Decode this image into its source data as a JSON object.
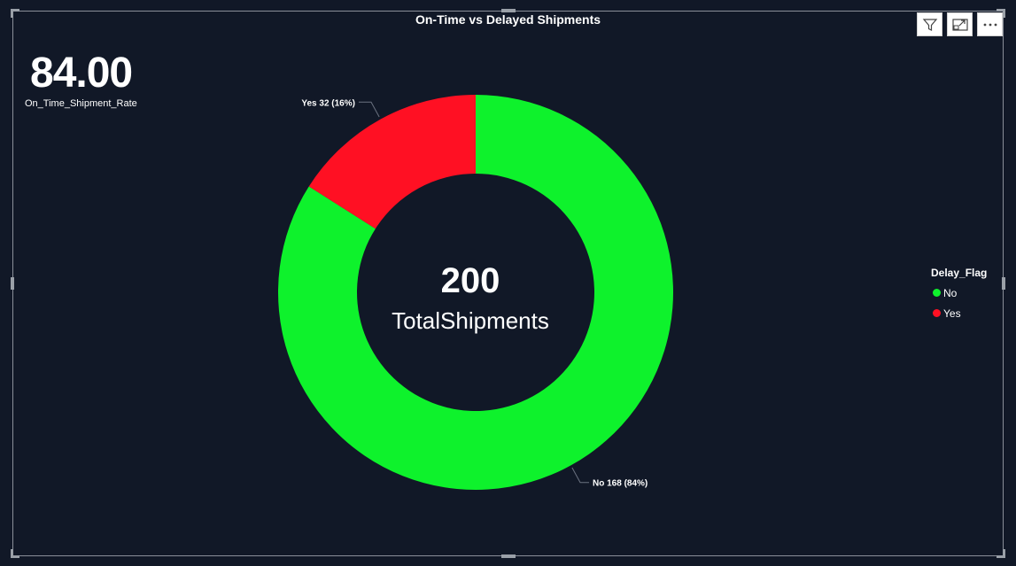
{
  "chart_data": {
    "type": "pie",
    "title": "On-Time vs Delayed Shipments",
    "legend_title": "Delay_Flag",
    "legend_position": "right",
    "hole": true,
    "slices": [
      {
        "label": "No",
        "value": 168,
        "percent": 84,
        "color": "#0ef22c",
        "data_label": "No 168 (84%)"
      },
      {
        "label": "Yes",
        "value": 32,
        "percent": 16,
        "color": "#ff1023",
        "data_label": "Yes 32 (16%)"
      }
    ],
    "center_value": "200",
    "center_label": "TotalShipments"
  },
  "kpi": {
    "value": "84.00",
    "label": "On_Time_Shipment_Rate"
  },
  "toolbar": {
    "icons": [
      "filter-icon",
      "focus-mode-icon",
      "more-options-icon"
    ]
  },
  "colors": {
    "background": "#111827",
    "text": "#ffffff"
  }
}
